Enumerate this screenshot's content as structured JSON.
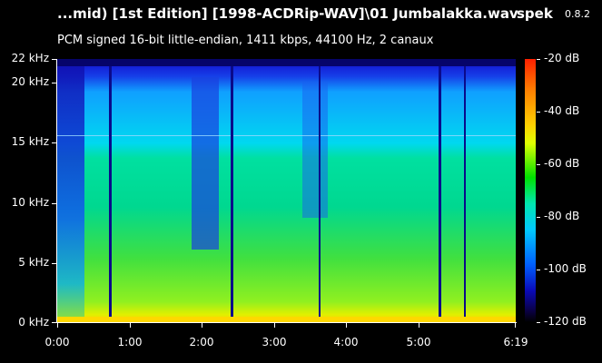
{
  "header": {
    "file_title": "...mid) [1st Edition] [1998-ACDRip-WAV]\\01 Jumbalakka.wav",
    "app_name": "spek",
    "app_version": "0.8.2",
    "info_line": "PCM signed 16-bit little-endian, 1411 kbps, 44100 Hz, 2 canaux"
  },
  "y_axis": {
    "labels": [
      "22 kHz",
      "20 kHz",
      "15 kHz",
      "10 kHz",
      "5 kHz",
      "0 kHz"
    ]
  },
  "x_axis": {
    "labels": [
      "0:00",
      "1:00",
      "2:00",
      "3:00",
      "4:00",
      "5:00",
      "6:19"
    ]
  },
  "colorbar": {
    "labels": [
      "-20 dB",
      "-40 dB",
      "-60 dB",
      "-80 dB",
      "-100 dB",
      "-120 dB"
    ]
  },
  "colors": {
    "background": "#000000",
    "text": "#ffffff"
  }
}
